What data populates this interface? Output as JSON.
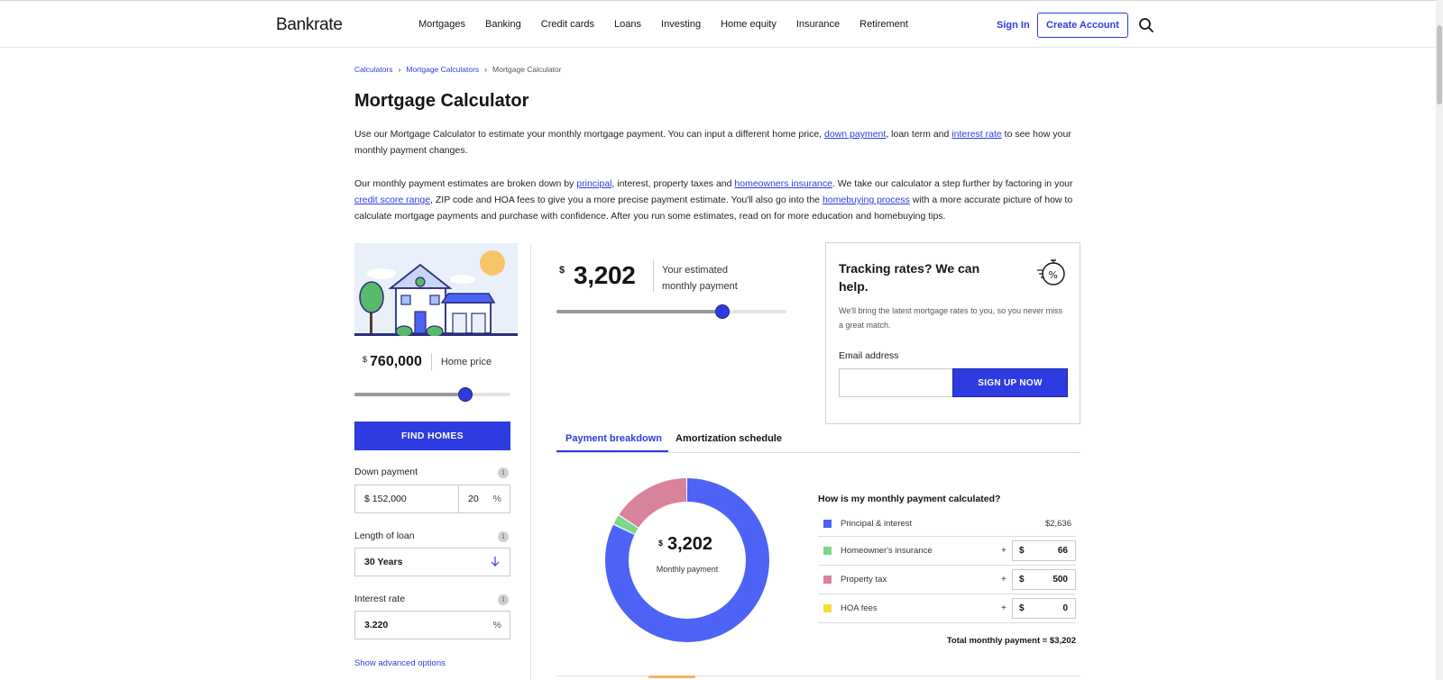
{
  "header": {
    "logo": "Bankrate",
    "nav": [
      "Mortgages",
      "Banking",
      "Credit cards",
      "Loans",
      "Investing",
      "Home equity",
      "Insurance",
      "Retirement"
    ],
    "sign_in": "Sign In",
    "create_account": "Create Account"
  },
  "breadcrumb": {
    "items": [
      "Calculators",
      "Mortgage Calculators",
      "Mortgage Calculator"
    ]
  },
  "page_title": "Mortgage Calculator",
  "intro": {
    "p1_a": "Use our Mortgage Calculator to estimate your monthly mortgage payment. You can input a different home price, ",
    "p1_link1": "down payment",
    "p1_b": ", loan term and ",
    "p1_link2": "interest rate",
    "p1_c": " to see how your monthly payment changes.",
    "p2_a": "Our monthly payment estimates are broken down by ",
    "p2_link1": "principal",
    "p2_b": ", interest, property taxes and ",
    "p2_link2": "homeowners insurance",
    "p2_c": ". We take our calculator a step further by factoring in your ",
    "p2_link3": "credit score range",
    "p2_d": ", ZIP code and HOA fees to give you a more precise payment estimate. You'll also go into the ",
    "p2_link4": "homebuying process",
    "p2_e": " with a more accurate picture of how to calculate mortgage payments and purchase with confidence. After you run some estimates, read on for more education and homebuying tips."
  },
  "calculator": {
    "currency": "$",
    "home_price": "760,000",
    "home_price_label": "Home price",
    "home_price_slider_fraction": 0.71,
    "find_homes": "FIND HOMES",
    "down_payment_label": "Down payment",
    "down_payment_value": "152,000",
    "down_payment_percent": "20",
    "percent_sign": "%",
    "loan_length_label": "Length of loan",
    "loan_length_value": "30 Years",
    "interest_rate_label": "Interest rate",
    "interest_rate_value": "3.220",
    "advanced_options": "Show advanced options",
    "info_glyph": "i"
  },
  "estimate": {
    "currency": "$",
    "value": "3,202",
    "label": "Your estimated monthly payment",
    "slider_fraction": 0.72
  },
  "tracking": {
    "title": "Tracking rates? We can help.",
    "description": "We'll bring the latest mortgage rates to you, so you never miss a great match.",
    "email_label": "Email address",
    "email_value": "",
    "signup": "SIGN UP NOW"
  },
  "tabs": {
    "active": "Payment breakdown",
    "inactive": "Amortization schedule"
  },
  "breakdown": {
    "donut_currency": "$",
    "donut_value": "3,202",
    "donut_label": "Monthly payment",
    "title": "How is my monthly payment calculated?",
    "rows": [
      {
        "label": "Principal & interest",
        "value": "$2,636",
        "color": "#4c63f5",
        "amount": 2636
      },
      {
        "label": "Homeowner's insurance",
        "plus": "+",
        "currency": "$",
        "value": "66",
        "color": "#7ed688",
        "amount": 66
      },
      {
        "label": "Property tax",
        "plus": "+",
        "currency": "$",
        "value": "500",
        "color": "#d9829b",
        "amount": 500
      },
      {
        "label": "HOA fees",
        "plus": "+",
        "currency": "$",
        "value": "0",
        "color": "#f5dc3c",
        "amount": 0
      }
    ],
    "total": "Total monthly payment = $3,202"
  },
  "colors": {
    "accent": "#2d3be0",
    "principal": "#4c63f5",
    "insurance": "#7ed688",
    "property_tax": "#d9829b",
    "hoa": "#f5dc3c"
  }
}
